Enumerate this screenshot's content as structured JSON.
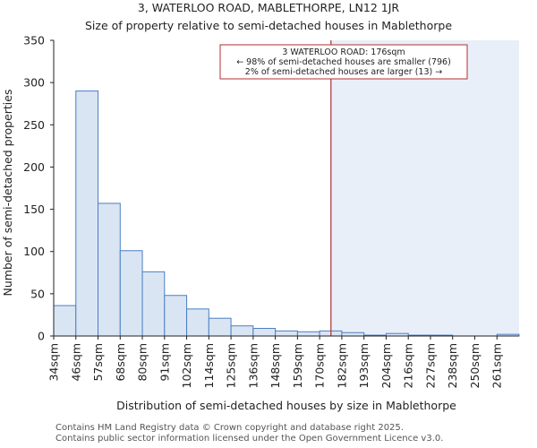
{
  "colors": {
    "bar_fill": "#dae5f4",
    "bar_stroke": "#4a7ec2",
    "marker": "#b0302f",
    "shade": "#e9eff9",
    "axis": "#222222"
  },
  "chart_data": {
    "type": "bar",
    "title": "3, WATERLOO ROAD, MABLETHORPE, LN12 1JR",
    "subtitle": "Size of property relative to semi-detached houses in Mablethorpe",
    "xlabel": "Distribution of semi-detached houses by size in Mablethorpe",
    "ylabel": "Number of semi-detached properties",
    "ylim": [
      0,
      350
    ],
    "yticks": [
      0,
      50,
      100,
      150,
      200,
      250,
      300,
      350
    ],
    "categories": [
      "34sqm",
      "46sqm",
      "57sqm",
      "68sqm",
      "80sqm",
      "91sqm",
      "102sqm",
      "114sqm",
      "125sqm",
      "136sqm",
      "148sqm",
      "159sqm",
      "170sqm",
      "182sqm",
      "193sqm",
      "204sqm",
      "216sqm",
      "227sqm",
      "238sqm",
      "250sqm",
      "261sqm"
    ],
    "values": [
      36,
      290,
      157,
      101,
      76,
      48,
      32,
      21,
      12,
      9,
      6,
      5,
      6,
      4,
      1,
      3,
      1,
      1,
      0,
      0,
      2
    ],
    "marker_value": 176,
    "marker_unit": "sqm",
    "annotation": [
      "3 WATERLOO ROAD: 176sqm",
      "← 98% of semi-detached houses are smaller (796)",
      "2% of semi-detached houses are larger (13) →"
    ],
    "grid": false
  },
  "footer": {
    "line1": "Contains HM Land Registry data © Crown copyright and database right 2025.",
    "line2": "Contains public sector information licensed under the Open Government Licence v3.0."
  }
}
